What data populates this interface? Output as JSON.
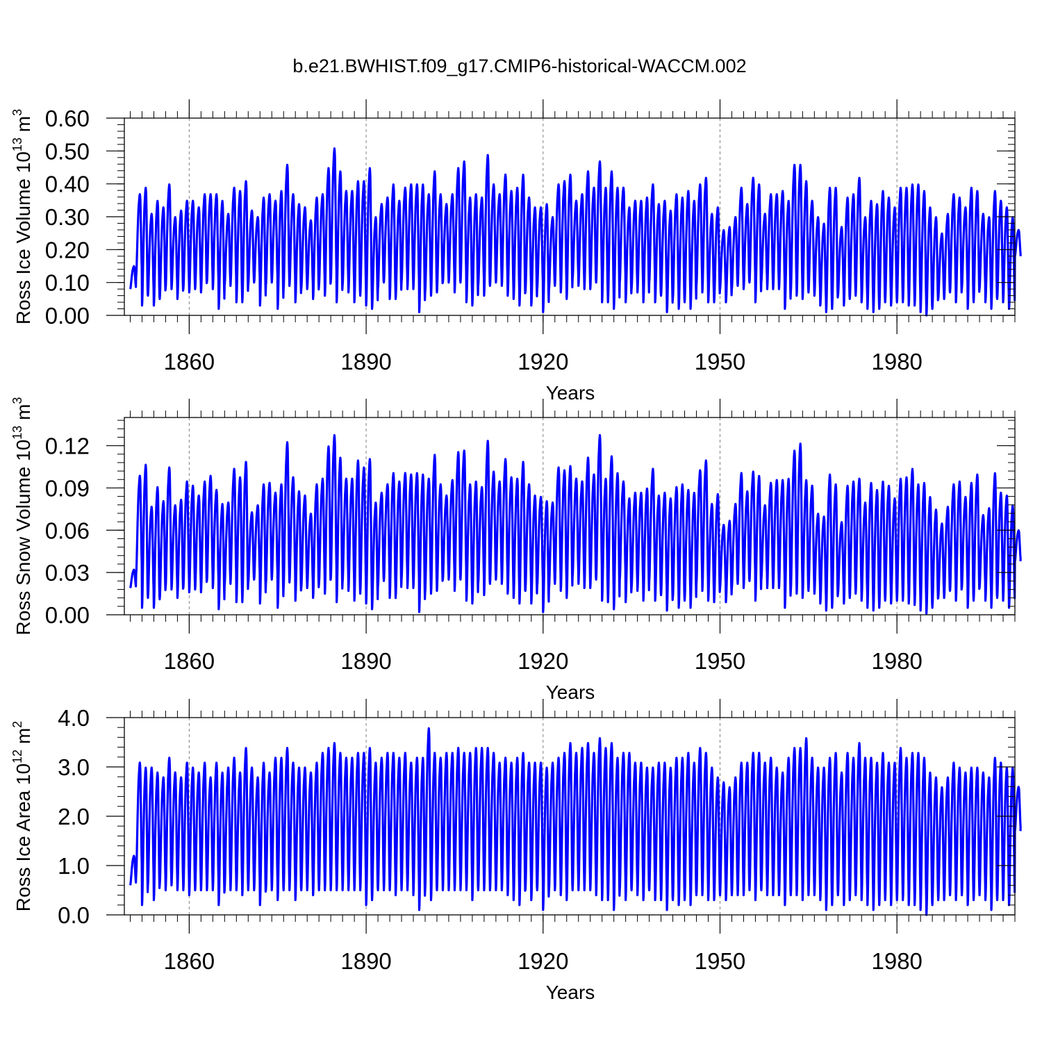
{
  "title": "b.e21.BWHIST.f09_g17.CMIP6-historical-WACCM.002",
  "line_color": "#0000ff",
  "chart_data": [
    {
      "type": "line",
      "ylabel": {
        "text": "Ross Ice Volume 10",
        "exp1": "13",
        "mid": " m",
        "exp2": "3"
      },
      "xlabel": "Years",
      "xlim": [
        1849,
        2000
      ],
      "ylim": [
        0,
        0.6
      ],
      "xticks": [
        1860,
        1890,
        1920,
        1950,
        1980
      ],
      "xtick_labels": [
        "1860",
        "1890",
        "1920",
        "1950",
        "1980"
      ],
      "yticks": [
        0,
        0.1,
        0.2,
        0.3,
        0.4,
        0.5,
        0.6
      ],
      "ytick_labels": [
        "0.00",
        "0.10",
        "0.20",
        "0.30",
        "0.40",
        "0.50",
        "0.60"
      ],
      "grid": "vertical dashed at labeled years",
      "series": [
        {
          "start_year": 1850,
          "end_year": 2000,
          "annual_max": [
            0.15,
            0.37,
            0.39,
            0.31,
            0.35,
            0.33,
            0.4,
            0.3,
            0.32,
            0.35,
            0.35,
            0.33,
            0.37,
            0.37,
            0.37,
            0.35,
            0.31,
            0.39,
            0.38,
            0.41,
            0.32,
            0.3,
            0.36,
            0.37,
            0.35,
            0.38,
            0.46,
            0.37,
            0.34,
            0.33,
            0.29,
            0.36,
            0.37,
            0.45,
            0.51,
            0.44,
            0.38,
            0.38,
            0.41,
            0.41,
            0.45,
            0.3,
            0.34,
            0.36,
            0.4,
            0.35,
            0.39,
            0.4,
            0.4,
            0.4,
            0.37,
            0.44,
            0.37,
            0.34,
            0.37,
            0.45,
            0.47,
            0.36,
            0.37,
            0.36,
            0.49,
            0.4,
            0.37,
            0.43,
            0.38,
            0.39,
            0.43,
            0.36,
            0.33,
            0.33,
            0.34,
            0.3,
            0.4,
            0.41,
            0.43,
            0.35,
            0.37,
            0.44,
            0.39,
            0.47,
            0.39,
            0.44,
            0.39,
            0.39,
            0.33,
            0.35,
            0.35,
            0.36,
            0.4,
            0.34,
            0.35,
            0.32,
            0.37,
            0.36,
            0.38,
            0.35,
            0.4,
            0.42,
            0.31,
            0.33,
            0.26,
            0.27,
            0.3,
            0.39,
            0.34,
            0.42,
            0.4,
            0.31,
            0.37,
            0.37,
            0.38,
            0.35,
            0.46,
            0.46,
            0.41,
            0.35,
            0.3,
            0.28,
            0.39,
            0.39,
            0.27,
            0.36,
            0.37,
            0.42,
            0.3,
            0.35,
            0.34,
            0.38,
            0.36,
            0.33,
            0.39,
            0.39,
            0.4,
            0.4,
            0.38,
            0.33,
            0.3,
            0.25,
            0.31,
            0.37,
            0.36,
            0.33,
            0.39,
            0.38,
            0.31,
            0.3,
            0.38,
            0.35,
            0.33,
            0.3,
            0.26
          ],
          "annual_min": [
            0.08,
            0.12,
            0.03,
            0.06,
            0.03,
            0.05,
            0.08,
            0.08,
            0.05,
            0.08,
            0.07,
            0.08,
            0.07,
            0.1,
            0.08,
            0.02,
            0.09,
            0.09,
            0.04,
            0.04,
            0.09,
            0.1,
            0.03,
            0.09,
            0.1,
            0.02,
            0.08,
            0.09,
            0.04,
            0.08,
            0.08,
            0.05,
            0.09,
            0.06,
            0.1,
            0.04,
            0.09,
            0.07,
            0.04,
            0.06,
            0.03,
            0.02,
            0.08,
            0.1,
            0.05,
            0.05,
            0.1,
            0.08,
            0.08,
            0.01,
            0.07,
            0.06,
            0.07,
            0.1,
            0.1,
            0.07,
            0.1,
            0.04,
            0.03,
            0.09,
            0.06,
            0.09,
            0.1,
            0.09,
            0.06,
            0.05,
            0.03,
            0.07,
            0.03,
            0.08,
            0.01,
            0.08,
            0.09,
            0.07,
            0.05,
            0.11,
            0.09,
            0.08,
            0.08,
            0.1,
            0.04,
            0.04,
            0.02,
            0.1,
            0.04,
            0.08,
            0.07,
            0.04,
            0.1,
            0.04,
            0.06,
            0.01,
            0.05,
            0.02,
            0.04,
            0.02,
            0.09,
            0.07,
            0.04,
            0.04,
            0.08,
            0.04,
            0.08,
            0.09,
            0.08,
            0.1,
            0.04,
            0.1,
            0.08,
            0.08,
            0.08,
            0.02,
            0.07,
            0.06,
            0.05,
            0.07,
            0.06,
            0.03,
            0.01,
            0.02,
            0.06,
            0.03,
            0.05,
            0.06,
            0.04,
            0.02,
            0.01,
            0.02,
            0.04,
            0.03,
            0.04,
            0.04,
            0.03,
            0.03,
            0.01,
            0.0,
            0.02,
            0.05,
            0.05,
            0.07,
            0.04,
            0.08,
            0.02,
            0.04,
            0.08,
            0.04,
            0.02,
            0.05,
            0.04,
            0.02,
            0.18
          ]
        }
      ]
    },
    {
      "type": "line",
      "ylabel": {
        "text": "Ross Snow Volume 10",
        "exp1": "13",
        "mid": " m",
        "exp2": "3"
      },
      "xlabel": "Years",
      "xlim": [
        1849,
        2000
      ],
      "ylim": [
        0,
        0.14
      ],
      "xticks": [
        1860,
        1890,
        1920,
        1950,
        1980
      ],
      "xtick_labels": [
        "1860",
        "1890",
        "1920",
        "1950",
        "1980"
      ],
      "yticks": [
        0,
        0.03,
        0.06,
        0.09,
        0.12
      ],
      "ytick_labels": [
        "0.00",
        "0.03",
        "0.06",
        "0.09",
        "0.12"
      ],
      "grid": "vertical dashed at labeled years",
      "series": [
        {
          "start_year": 1850,
          "end_year": 2000,
          "annual_max": [
            0.032,
            0.099,
            0.107,
            0.077,
            0.091,
            0.081,
            0.105,
            0.078,
            0.082,
            0.095,
            0.092,
            0.085,
            0.095,
            0.099,
            0.089,
            0.079,
            0.08,
            0.104,
            0.098,
            0.109,
            0.073,
            0.078,
            0.093,
            0.094,
            0.087,
            0.093,
            0.123,
            0.098,
            0.088,
            0.085,
            0.072,
            0.093,
            0.097,
            0.12,
            0.128,
            0.112,
            0.097,
            0.097,
            0.11,
            0.105,
            0.111,
            0.08,
            0.087,
            0.093,
            0.101,
            0.095,
            0.101,
            0.1,
            0.101,
            0.1,
            0.097,
            0.114,
            0.093,
            0.085,
            0.096,
            0.116,
            0.117,
            0.093,
            0.095,
            0.091,
            0.124,
            0.102,
            0.095,
            0.111,
            0.098,
            0.097,
            0.109,
            0.093,
            0.085,
            0.084,
            0.081,
            0.08,
            0.105,
            0.103,
            0.106,
            0.097,
            0.095,
            0.112,
            0.1,
            0.128,
            0.097,
            0.113,
            0.101,
            0.095,
            0.083,
            0.087,
            0.087,
            0.09,
            0.104,
            0.085,
            0.087,
            0.083,
            0.091,
            0.093,
            0.089,
            0.087,
            0.103,
            0.11,
            0.079,
            0.086,
            0.064,
            0.067,
            0.079,
            0.101,
            0.088,
            0.102,
            0.099,
            0.078,
            0.094,
            0.096,
            0.096,
            0.097,
            0.117,
            0.122,
            0.096,
            0.092,
            0.072,
            0.07,
            0.1,
            0.093,
            0.066,
            0.092,
            0.095,
            0.097,
            0.08,
            0.094,
            0.089,
            0.095,
            0.092,
            0.083,
            0.097,
            0.098,
            0.104,
            0.093,
            0.094,
            0.084,
            0.075,
            0.065,
            0.077,
            0.093,
            0.095,
            0.084,
            0.094,
            0.1,
            0.071,
            0.076,
            0.101,
            0.087,
            0.085,
            0.078,
            0.06
          ],
          "annual_min": [
            0.019,
            0.029,
            0.005,
            0.012,
            0.005,
            0.011,
            0.019,
            0.018,
            0.012,
            0.019,
            0.016,
            0.018,
            0.016,
            0.024,
            0.019,
            0.004,
            0.021,
            0.022,
            0.009,
            0.009,
            0.022,
            0.025,
            0.008,
            0.022,
            0.025,
            0.005,
            0.019,
            0.023,
            0.01,
            0.019,
            0.019,
            0.012,
            0.022,
            0.015,
            0.025,
            0.009,
            0.023,
            0.017,
            0.01,
            0.015,
            0.008,
            0.004,
            0.02,
            0.024,
            0.012,
            0.012,
            0.025,
            0.019,
            0.019,
            0.002,
            0.016,
            0.015,
            0.017,
            0.025,
            0.025,
            0.017,
            0.025,
            0.01,
            0.008,
            0.022,
            0.014,
            0.022,
            0.025,
            0.022,
            0.015,
            0.012,
            0.008,
            0.017,
            0.008,
            0.02,
            0.002,
            0.019,
            0.022,
            0.017,
            0.012,
            0.027,
            0.022,
            0.019,
            0.019,
            0.025,
            0.01,
            0.009,
            0.004,
            0.025,
            0.009,
            0.019,
            0.017,
            0.01,
            0.024,
            0.01,
            0.014,
            0.003,
            0.012,
            0.005,
            0.01,
            0.005,
            0.022,
            0.017,
            0.01,
            0.009,
            0.019,
            0.009,
            0.019,
            0.022,
            0.019,
            0.024,
            0.01,
            0.025,
            0.019,
            0.019,
            0.019,
            0.005,
            0.017,
            0.015,
            0.012,
            0.017,
            0.015,
            0.008,
            0.003,
            0.005,
            0.015,
            0.008,
            0.012,
            0.015,
            0.01,
            0.005,
            0.003,
            0.005,
            0.01,
            0.008,
            0.01,
            0.01,
            0.008,
            0.007,
            0.003,
            0.001,
            0.005,
            0.012,
            0.012,
            0.017,
            0.01,
            0.019,
            0.005,
            0.01,
            0.019,
            0.01,
            0.005,
            0.012,
            0.01,
            0.005,
            0.038
          ]
        }
      ]
    },
    {
      "type": "line",
      "ylabel": {
        "text": "Ross Ice Area 10",
        "exp1": "12",
        "mid": " m",
        "exp2": "2"
      },
      "xlabel": "Years",
      "xlim": [
        1849,
        2000
      ],
      "ylim": [
        0,
        4
      ],
      "xticks": [
        1860,
        1890,
        1920,
        1950,
        1980
      ],
      "xtick_labels": [
        "1860",
        "1890",
        "1920",
        "1950",
        "1980"
      ],
      "yticks": [
        0,
        1,
        2,
        3,
        4
      ],
      "ytick_labels": [
        "0.0",
        "1.0",
        "2.0",
        "3.0",
        "4.0"
      ],
      "grid": "vertical dashed at labeled years",
      "series": [
        {
          "start_year": 1850,
          "end_year": 2000,
          "annual_max": [
            1.2,
            3.1,
            3.0,
            3.0,
            2.9,
            2.8,
            3.2,
            2.9,
            2.8,
            3.1,
            3.0,
            2.9,
            3.1,
            2.8,
            3.1,
            2.9,
            3.0,
            3.2,
            2.9,
            3.4,
            3.0,
            2.8,
            3.1,
            2.9,
            3.2,
            3.2,
            3.4,
            3.1,
            3.0,
            3.0,
            2.9,
            3.1,
            3.3,
            3.4,
            3.5,
            3.3,
            3.2,
            3.2,
            3.3,
            3.3,
            3.4,
            3.1,
            3.2,
            3.3,
            3.3,
            3.2,
            3.3,
            3.1,
            3.2,
            3.2,
            3.8,
            3.3,
            3.2,
            3.3,
            3.3,
            3.4,
            3.3,
            3.3,
            3.4,
            3.4,
            3.4,
            3.3,
            3.1,
            3.2,
            3.1,
            3.2,
            3.3,
            3.1,
            3.1,
            3.1,
            3.0,
            3.1,
            3.2,
            3.3,
            3.5,
            3.3,
            3.4,
            3.5,
            3.3,
            3.6,
            3.4,
            3.5,
            3.2,
            3.3,
            3.3,
            3.1,
            3.1,
            3.0,
            3.0,
            3.1,
            3.1,
            3.0,
            3.2,
            3.2,
            3.3,
            3.1,
            3.4,
            3.3,
            3.0,
            2.8,
            2.7,
            2.6,
            2.8,
            3.1,
            3.1,
            3.3,
            3.3,
            3.1,
            3.2,
            3.0,
            2.9,
            3.2,
            3.4,
            3.4,
            3.6,
            3.2,
            3.0,
            3.0,
            3.2,
            3.3,
            2.9,
            3.3,
            3.2,
            3.5,
            3.2,
            3.2,
            3.1,
            3.3,
            3.1,
            3.1,
            3.4,
            3.2,
            3.3,
            3.3,
            3.2,
            2.9,
            2.8,
            2.6,
            2.8,
            3.1,
            3.0,
            2.9,
            3.0,
            3.0,
            2.9,
            2.8,
            3.2,
            3.1,
            3.0,
            3.0,
            2.6
          ],
          "annual_min": [
            0.6,
            0.8,
            0.2,
            0.6,
            0.3,
            0.6,
            0.5,
            0.6,
            0.5,
            0.5,
            0.4,
            0.5,
            0.5,
            0.5,
            0.5,
            0.2,
            0.5,
            0.5,
            0.5,
            0.4,
            0.5,
            0.5,
            0.2,
            0.5,
            0.5,
            0.3,
            0.5,
            0.5,
            0.3,
            0.5,
            0.5,
            0.4,
            0.5,
            0.5,
            0.5,
            0.5,
            0.5,
            0.5,
            0.5,
            0.5,
            0.2,
            0.3,
            0.5,
            0.5,
            0.5,
            0.4,
            0.5,
            0.5,
            0.4,
            0.1,
            0.5,
            0.3,
            0.5,
            0.5,
            0.5,
            0.5,
            0.5,
            0.5,
            0.3,
            0.5,
            0.5,
            0.5,
            0.5,
            0.5,
            0.4,
            0.3,
            0.2,
            0.5,
            0.3,
            0.5,
            0.1,
            0.5,
            0.5,
            0.4,
            0.3,
            0.5,
            0.5,
            0.5,
            0.5,
            0.4,
            0.3,
            0.3,
            0.1,
            0.5,
            0.3,
            0.5,
            0.4,
            0.3,
            0.5,
            0.3,
            0.3,
            0.1,
            0.3,
            0.2,
            0.3,
            0.2,
            0.4,
            0.4,
            0.3,
            0.3,
            0.4,
            0.3,
            0.4,
            0.4,
            0.4,
            0.5,
            0.3,
            0.5,
            0.4,
            0.4,
            0.4,
            0.2,
            0.4,
            0.4,
            0.3,
            0.4,
            0.4,
            0.3,
            0.1,
            0.2,
            0.4,
            0.2,
            0.3,
            0.4,
            0.3,
            0.2,
            0.1,
            0.2,
            0.3,
            0.2,
            0.3,
            0.3,
            0.2,
            0.2,
            0.1,
            0.0,
            0.2,
            0.3,
            0.3,
            0.4,
            0.3,
            0.4,
            0.2,
            0.3,
            0.4,
            0.3,
            0.1,
            0.3,
            0.3,
            0.2,
            1.7
          ]
        }
      ]
    }
  ]
}
